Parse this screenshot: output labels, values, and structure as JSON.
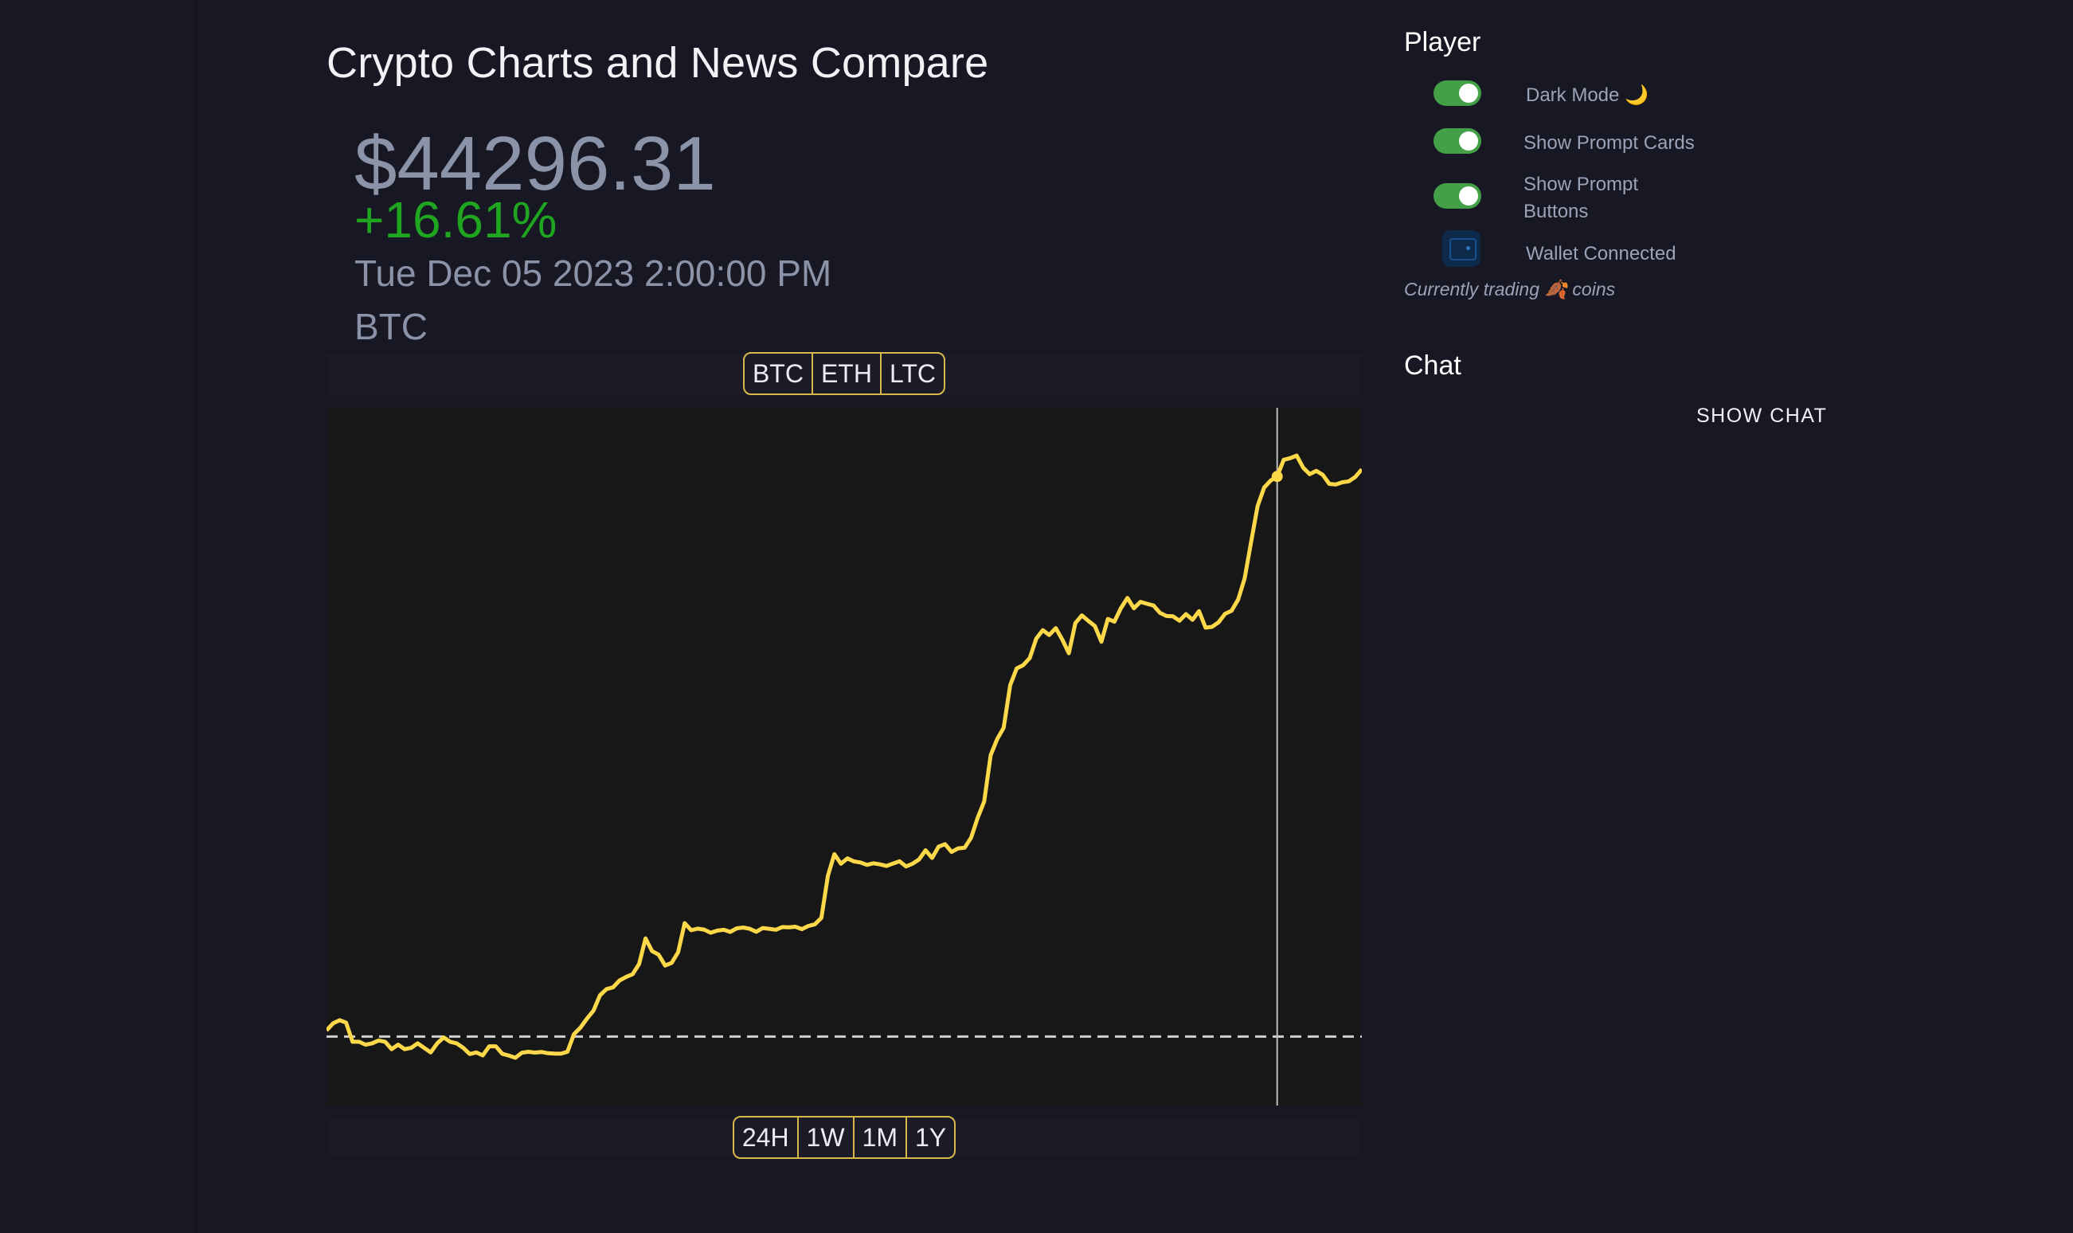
{
  "header": {
    "title": "Crypto Charts and News Compare"
  },
  "ticker": {
    "price": "$44296.31",
    "change": "+16.61%",
    "datetime": "Tue Dec 05 2023 2:00:00 PM",
    "symbol": "BTC"
  },
  "coin_selector": {
    "options": [
      "BTC",
      "ETH",
      "LTC"
    ]
  },
  "range_selector": {
    "options": [
      "24H",
      "1W",
      "1M",
      "1Y"
    ]
  },
  "chart_data": {
    "type": "line",
    "series": [
      {
        "values": [
          37983,
          38027,
          38046,
          38032,
          37913,
          37913,
          37895,
          37903,
          37921,
          37913,
          37867,
          37895,
          37867,
          37875,
          37903,
          37875,
          37847,
          37903,
          37940,
          37913,
          37903,
          37875,
          37837,
          37847,
          37829,
          37885,
          37885,
          37838,
          37828,
          37814,
          37845,
          37851,
          37846,
          37850,
          37842,
          37840,
          37839,
          37851,
          37960,
          38001,
          38056,
          38106,
          38201,
          38239,
          38250,
          38292,
          38314,
          38331,
          38394,
          38553,
          38474,
          38452,
          38385,
          38401,
          38467,
          38647,
          38604,
          38613,
          38607,
          38588,
          38601,
          38606,
          38593,
          38615,
          38620,
          38612,
          38594,
          38617,
          38612,
          38606,
          38623,
          38621,
          38625,
          38610,
          38630,
          38640,
          38680,
          38941,
          39074,
          39015,
          39048,
          39029,
          39023,
          39008,
          39018,
          39011,
          39001,
          39016,
          39030,
          38998,
          39015,
          39041,
          39098,
          39051,
          39121,
          39136,
          39088,
          39110,
          39114,
          39176,
          39299,
          39400,
          39688,
          39786,
          39857,
          40121,
          40224,
          40244,
          40288,
          40408,
          40461,
          40431,
          40473,
          40402,
          40318,
          40504,
          40552,
          40518,
          40486,
          40389,
          40530,
          40513,
          40597,
          40660,
          40596,
          40636,
          40624,
          40613,
          40568,
          40548,
          40546,
          40519,
          40560,
          40525,
          40578,
          40476,
          40481,
          40509,
          40562,
          40581,
          40650,
          40780,
          41007,
          41230,
          41344,
          41386,
          41412,
          41515,
          41525,
          41541,
          41466,
          41426,
          41447,
          41422,
          41366,
          41362,
          41376,
          41382,
          41409,
          41456
        ]
      }
    ],
    "x_label": "",
    "y_label": "",
    "reference_line": 37945,
    "cursor_index": 146,
    "line_color": "#fdd94a",
    "axes": "hidden",
    "grid": false
  },
  "settings": {
    "section_title": "Player",
    "items": [
      {
        "label": "Dark Mode 🌙"
      },
      {
        "label": "Show Prompt Cards"
      },
      {
        "label": "Show Prompt Buttons"
      }
    ],
    "wallet_label": "Wallet Connected",
    "trading_note": "Currently trading 🍂 coins"
  },
  "chat": {
    "section_title": "Chat",
    "show_chat_label": "SHOW CHAT"
  }
}
